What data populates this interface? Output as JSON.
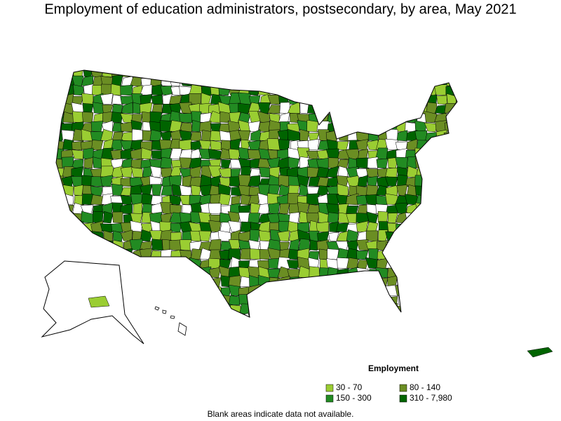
{
  "title": "Employment of education administrators, postsecondary, by area, May 2021",
  "legend": {
    "title": "Employment",
    "items": [
      {
        "label": "30 - 70",
        "color": "#9acd32"
      },
      {
        "label": "80 - 140",
        "color": "#6b8e23"
      },
      {
        "label": "150 - 300",
        "color": "#228b22"
      },
      {
        "label": "310 - 7,980",
        "color": "#006400"
      }
    ]
  },
  "note": "Blank areas indicate data not available."
}
